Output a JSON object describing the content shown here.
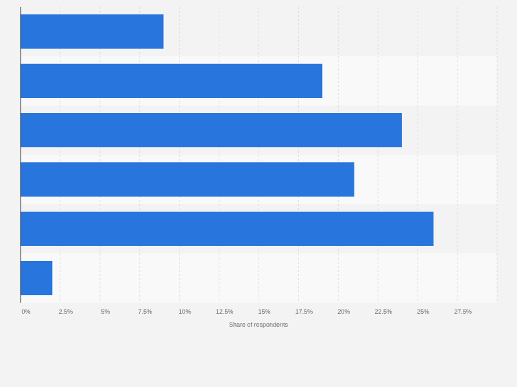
{
  "chart_data": {
    "type": "bar",
    "orientation": "horizontal",
    "categories": [
      "",
      "",
      "",
      "",
      "",
      ""
    ],
    "values": [
      9,
      19,
      24,
      21,
      26,
      2
    ],
    "xlabel": "Share of respondents",
    "ylabel": "",
    "xlim": [
      0,
      30
    ],
    "x_ticks": [
      0,
      2.5,
      5,
      7.5,
      10,
      12.5,
      15,
      17.5,
      20,
      22.5,
      25,
      27.5
    ],
    "x_tick_labels": [
      "0%",
      "2.5%",
      "5%",
      "7.5%",
      "10%",
      "12.5%",
      "15%",
      "17.5%",
      "20%",
      "22.5%",
      "25%",
      "27.5%"
    ],
    "grid": true,
    "legend": "none",
    "bar_color": "#2876dd",
    "band_colors": [
      "#f3f3f3",
      "#f9f9f9"
    ],
    "gridline_color": "#dddddd",
    "axis_color": "#333333",
    "tick_label_color": "#666666"
  }
}
